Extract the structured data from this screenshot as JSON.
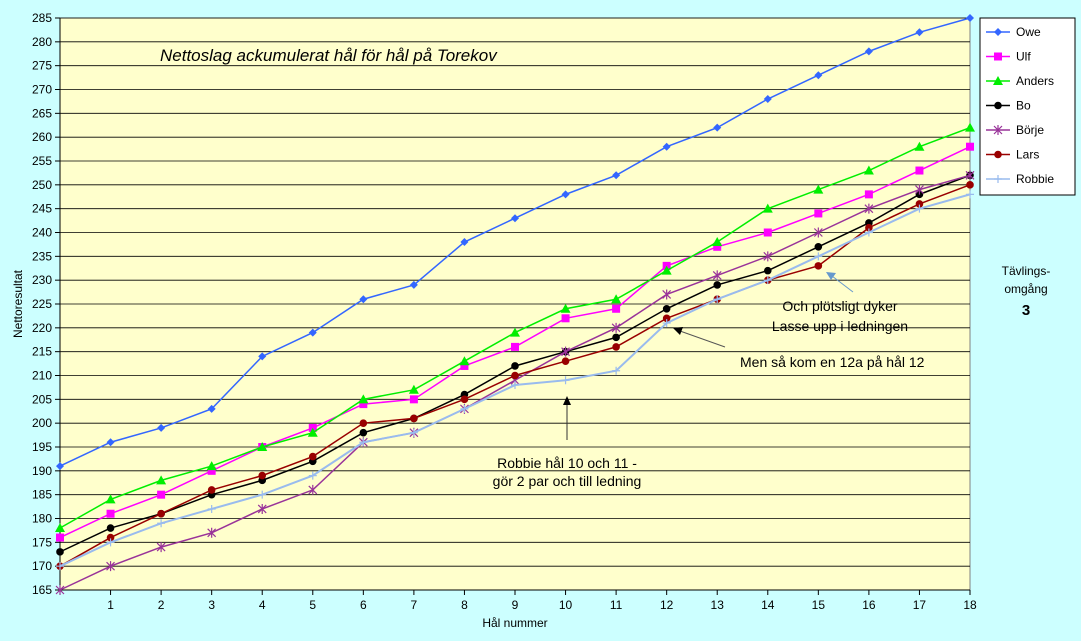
{
  "chart_data": {
    "type": "line",
    "title": "Nettoslag ackumulerat hål för hål på Torekov",
    "xlabel": "Hål nummer",
    "ylabel": "Nettoresultat",
    "x": [
      0,
      1,
      2,
      3,
      4,
      5,
      6,
      7,
      8,
      9,
      10,
      11,
      12,
      13,
      14,
      15,
      16,
      17,
      18
    ],
    "x_tick_labels": [
      "1",
      "2",
      "3",
      "4",
      "5",
      "6",
      "7",
      "8",
      "9",
      "10",
      "11",
      "12",
      "13",
      "14",
      "15",
      "16",
      "17",
      "18"
    ],
    "ylim": [
      165,
      285
    ],
    "y_step": 5,
    "grid": true,
    "legend_position": "right",
    "series": [
      {
        "name": "Owe",
        "color": "#3366ff",
        "marker": "diamond",
        "values": [
          191,
          196,
          199,
          203,
          214,
          219,
          226,
          229,
          238,
          243,
          248,
          252,
          258,
          262,
          268,
          273,
          278,
          282,
          285
        ]
      },
      {
        "name": "Ulf",
        "color": "#ff00ff",
        "marker": "square",
        "values": [
          176,
          181,
          185,
          190,
          195,
          199,
          204,
          205,
          212,
          216,
          222,
          224,
          233,
          237,
          240,
          244,
          248,
          253,
          258
        ]
      },
      {
        "name": "Anders",
        "color": "#00ee00",
        "marker": "triangle",
        "values": [
          178,
          184,
          188,
          191,
          195,
          198,
          205,
          207,
          213,
          219,
          224,
          226,
          232,
          238,
          245,
          249,
          253,
          258,
          262
        ]
      },
      {
        "name": "Bo",
        "color": "#000000",
        "marker": "circle",
        "values": [
          173,
          178,
          181,
          185,
          188,
          192,
          198,
          201,
          206,
          212,
          215,
          218,
          224,
          229,
          232,
          237,
          242,
          248,
          252
        ]
      },
      {
        "name": "Börje",
        "color": "#993399",
        "marker": "star",
        "values": [
          165,
          170,
          174,
          177,
          182,
          186,
          196,
          198,
          203,
          209,
          215,
          220,
          227,
          231,
          235,
          240,
          245,
          249,
          252
        ]
      },
      {
        "name": "Lars",
        "color": "#990000",
        "marker": "circle",
        "values": [
          170,
          176,
          181,
          186,
          189,
          193,
          200,
          201,
          205,
          210,
          213,
          216,
          222,
          226,
          230,
          233,
          241,
          246,
          250
        ]
      },
      {
        "name": "Robbie",
        "color": "#99bbee",
        "marker": "plus",
        "values": [
          170,
          175,
          179,
          182,
          185,
          189,
          196,
          198,
          203,
          208,
          209,
          211,
          221,
          226,
          230,
          235,
          240,
          245,
          248
        ]
      }
    ],
    "annotations": [
      {
        "lines": [
          "Robbie hål 10 och 11 -",
          "gör 2 par och till ledning"
        ]
      },
      {
        "lines": [
          "Men så kom en 12a på hål 12"
        ]
      },
      {
        "lines": [
          "Och plötsligt dyker",
          "Lasse upp i ledningen"
        ]
      }
    ]
  },
  "side_note": {
    "line1": "Tävlings-",
    "line2": "omgång",
    "round": "3"
  }
}
